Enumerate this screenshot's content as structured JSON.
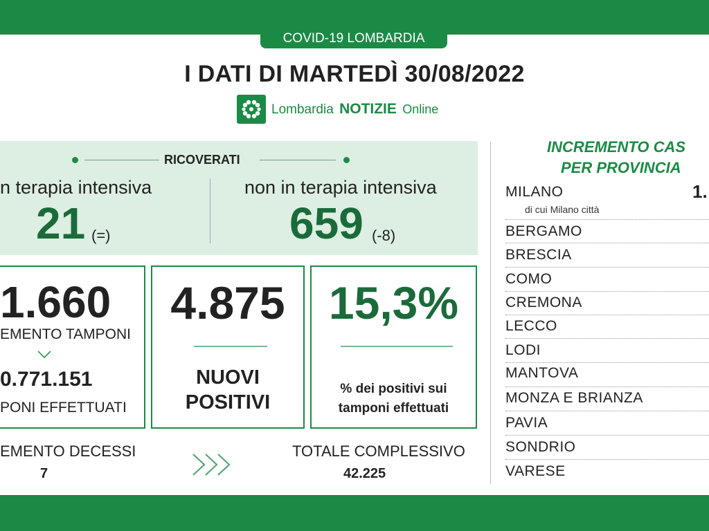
{
  "header": {
    "badge": "COVID-19 LOMBARDIA",
    "title": "I DATI DI MARTEDÌ 30/08/2022",
    "logo": {
      "brand": "Lombardia",
      "strong": "NOTIZIE",
      "suffix": "Online",
      "icon": "lombardia-rosa-camuna-icon"
    }
  },
  "hospitalized": {
    "label": "RICOVERATI",
    "icu": {
      "label": "n terapia intensiva",
      "value": "21",
      "delta": "(=)"
    },
    "non_icu": {
      "label": "non in terapia intensiva",
      "value": "659",
      "delta": "(-8)"
    }
  },
  "tests": {
    "value": "1.660",
    "label": "EMENTO TAMPONI",
    "total": "0.771.151",
    "total_label": "PONI EFFETTUATI"
  },
  "new_positives": {
    "value": "4.875",
    "label_line1": "NUOVI",
    "label_line2": "POSITIVI"
  },
  "positivity": {
    "value": "15,3%",
    "label_line1": "% dei positivi sui",
    "label_line2": "tamponi effettuati"
  },
  "deaths": {
    "label": "EMENTO DECESSI",
    "value": "7"
  },
  "total_deaths": {
    "label": "TOTALE COMPLESSIVO",
    "value": "42.225"
  },
  "provinces": {
    "title_line1": "INCREMENTO CAS",
    "title_line2": "PER PROVINCIA",
    "items": [
      {
        "name": "MILANO",
        "sub": "di cui Milano città",
        "value": "1."
      },
      {
        "name": "BERGAMO"
      },
      {
        "name": "BRESCIA"
      },
      {
        "name": "COMO"
      },
      {
        "name": "CREMONA"
      },
      {
        "name": "LECCO"
      },
      {
        "name": "LODI"
      },
      {
        "name": "MANTOVA"
      },
      {
        "name": "MONZA E BRIANZA"
      },
      {
        "name": "PAVIA"
      },
      {
        "name": "SONDRIO"
      },
      {
        "name": "VARESE"
      }
    ]
  },
  "colors": {
    "brand_green": "#1b8a45",
    "dark_green": "#1b6b3a",
    "panel_green": "#dcefe2"
  }
}
